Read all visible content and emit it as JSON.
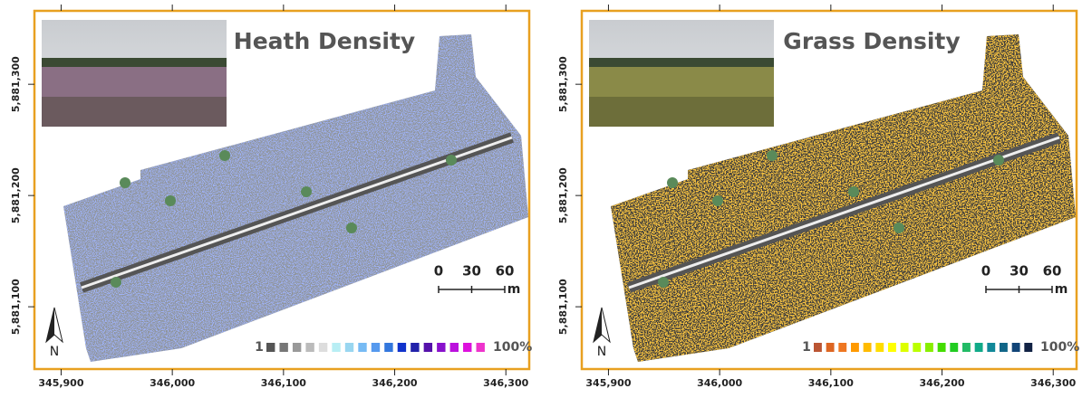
{
  "panels": [
    {
      "title": "Heath Density",
      "legend": {
        "min_label": "1",
        "max_label": "100%",
        "colors": [
          "#555555",
          "#777777",
          "#999999",
          "#bbbbbb",
          "#dddddd",
          "#b8eef4",
          "#99d6f0",
          "#77bbf4",
          "#5599ee",
          "#3377dd",
          "#1133cc",
          "#2222aa",
          "#5511aa",
          "#8811cc",
          "#bb11dd",
          "#dd11dd",
          "#ee33cc"
        ]
      }
    },
    {
      "title": "Grass Density",
      "legend": {
        "min_label": "1",
        "max_label": "100%",
        "colors": [
          "#bb5533",
          "#dd6622",
          "#ee7722",
          "#ff9900",
          "#ffbb00",
          "#ffdd00",
          "#ffff00",
          "#ddff00",
          "#bbff00",
          "#88ee00",
          "#44dd00",
          "#22cc22",
          "#22bb66",
          "#11aa88",
          "#118899",
          "#116688",
          "#114477",
          "#112244"
        ]
      }
    }
  ],
  "axes": {
    "xlim": [
      345876,
      346321
    ],
    "ylim": [
      5881044,
      5881366
    ],
    "xticks": [
      {
        "value": 345900,
        "label": "345,900"
      },
      {
        "value": 346000,
        "label": "346,000"
      },
      {
        "value": 346100,
        "label": "346,100"
      },
      {
        "value": 346200,
        "label": "346,200"
      },
      {
        "value": 346300,
        "label": "346,300"
      }
    ],
    "yticks": [
      {
        "value": 5881300,
        "label": "5,881,300"
      },
      {
        "value": 5881200,
        "label": "5,881,200"
      },
      {
        "value": 5881100,
        "label": "5,881,100"
      }
    ]
  },
  "scale_bar": {
    "ticks": [
      0,
      30,
      60
    ],
    "unit": "m"
  },
  "north_label": "N"
}
